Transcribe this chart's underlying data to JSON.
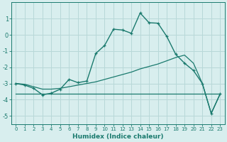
{
  "x": [
    0,
    1,
    2,
    3,
    4,
    5,
    6,
    7,
    8,
    9,
    10,
    11,
    12,
    13,
    14,
    15,
    16,
    17,
    18,
    19,
    20,
    21,
    22,
    23
  ],
  "line1": [
    -3.0,
    -3.1,
    -3.3,
    -3.7,
    -3.6,
    -3.35,
    -2.75,
    -2.95,
    -2.85,
    -1.15,
    -0.65,
    0.35,
    0.3,
    0.1,
    1.35,
    0.75,
    0.72,
    -0.1,
    -1.2,
    -1.75,
    -2.2,
    -3.0,
    -4.85,
    -3.65
  ],
  "line2": [
    -3.0,
    -3.05,
    -3.2,
    -3.35,
    -3.35,
    -3.3,
    -3.2,
    -3.1,
    -3.0,
    -2.9,
    -2.75,
    -2.6,
    -2.45,
    -2.3,
    -2.1,
    -1.95,
    -1.8,
    -1.6,
    -1.4,
    -1.25,
    -1.75,
    -3.0,
    -4.85,
    -3.65
  ],
  "line3": [
    -3.65,
    -3.65,
    -3.65,
    -3.65,
    -3.65,
    -3.65,
    -3.65,
    -3.65,
    -3.65,
    -3.65,
    -3.65,
    -3.65,
    -3.65,
    -3.65,
    -3.65,
    -3.65,
    -3.65,
    -3.65,
    -3.65,
    -3.65,
    -3.65,
    -3.65,
    -3.65,
    -3.65
  ],
  "color": "#1a7a6e",
  "bg_color": "#d8eeee",
  "grid_color": "#b8d8d8",
  "xlabel": "Humidex (Indice chaleur)",
  "xlim": [
    -0.5,
    23.5
  ],
  "ylim": [
    -5.5,
    2.0
  ],
  "yticks": [
    -5,
    -4,
    -3,
    -2,
    -1,
    0,
    1
  ],
  "xticks": [
    0,
    1,
    2,
    3,
    4,
    5,
    6,
    7,
    8,
    9,
    10,
    11,
    12,
    13,
    14,
    15,
    16,
    17,
    18,
    19,
    20,
    21,
    22,
    23
  ]
}
